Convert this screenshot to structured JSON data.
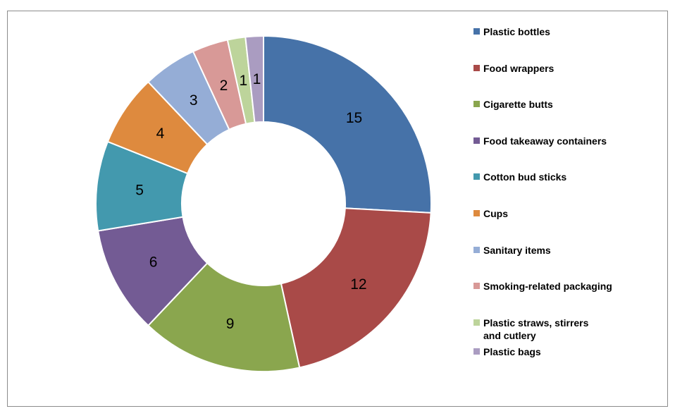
{
  "chart_data": {
    "type": "pie",
    "style": "donut",
    "title": "",
    "legend_position": "right",
    "categories": [
      "Plastic bottles",
      "Food wrappers",
      "Cigarette butts",
      "Food takeaway containers",
      "Cotton bud sticks",
      "Cups",
      "Sanitary items",
      "Smoking-related packaging",
      "Plastic straws, stirrers\nand cutlery",
      "Plastic bags"
    ],
    "values": [
      15,
      12,
      9,
      6,
      5,
      4,
      3,
      2,
      1,
      1
    ],
    "data_labels": [
      "15",
      "12",
      "9",
      "6",
      "5",
      "4",
      "3",
      "2",
      "1",
      "1"
    ],
    "colors": [
      "#4672a8",
      "#a94a48",
      "#8aa64e",
      "#735b94",
      "#4399ae",
      "#de8a3e",
      "#95add6",
      "#d89997",
      "#bdd49b",
      "#aa9cc1"
    ]
  }
}
